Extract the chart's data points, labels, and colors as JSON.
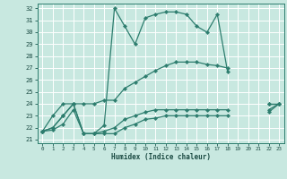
{
  "xlabel": "Humidex (Indice chaleur)",
  "xlim": [
    -0.5,
    23.5
  ],
  "ylim": [
    20.7,
    32.4
  ],
  "yticks": [
    21,
    22,
    23,
    24,
    25,
    26,
    27,
    28,
    29,
    30,
    31,
    32
  ],
  "xticks": [
    0,
    1,
    2,
    3,
    4,
    5,
    6,
    7,
    8,
    9,
    10,
    11,
    12,
    13,
    14,
    15,
    16,
    17,
    18,
    19,
    20,
    21,
    22,
    23
  ],
  "bg_color": "#c8e8e0",
  "grid_color": "#ffffff",
  "line_color": "#2d7d6e",
  "line1_y": [
    21.7,
    23.0,
    24.0,
    24.0,
    21.5,
    21.5,
    22.2,
    32.0,
    30.5,
    29.0,
    31.2,
    31.5,
    31.7,
    31.7,
    31.5,
    30.5,
    30.0,
    31.5,
    26.7,
    null,
    null,
    null,
    24.0,
    24.0
  ],
  "line2_y": [
    21.7,
    22.0,
    23.0,
    24.0,
    24.0,
    24.0,
    24.3,
    24.3,
    25.3,
    25.8,
    26.3,
    26.8,
    27.2,
    27.5,
    27.5,
    27.5,
    27.3,
    27.2,
    27.0,
    null,
    null,
    null,
    24.0,
    24.0
  ],
  "line3_y": [
    21.7,
    22.0,
    23.0,
    24.0,
    21.5,
    21.5,
    21.7,
    22.0,
    22.7,
    23.0,
    23.3,
    23.5,
    23.5,
    23.5,
    23.5,
    23.5,
    23.5,
    23.5,
    23.5,
    null,
    null,
    null,
    23.5,
    24.0
  ],
  "line4_y": [
    21.7,
    21.8,
    22.3,
    23.5,
    21.5,
    21.5,
    21.5,
    21.5,
    22.0,
    22.3,
    22.7,
    22.8,
    23.0,
    23.0,
    23.0,
    23.0,
    23.0,
    23.0,
    23.0,
    null,
    null,
    null,
    23.3,
    24.0
  ]
}
